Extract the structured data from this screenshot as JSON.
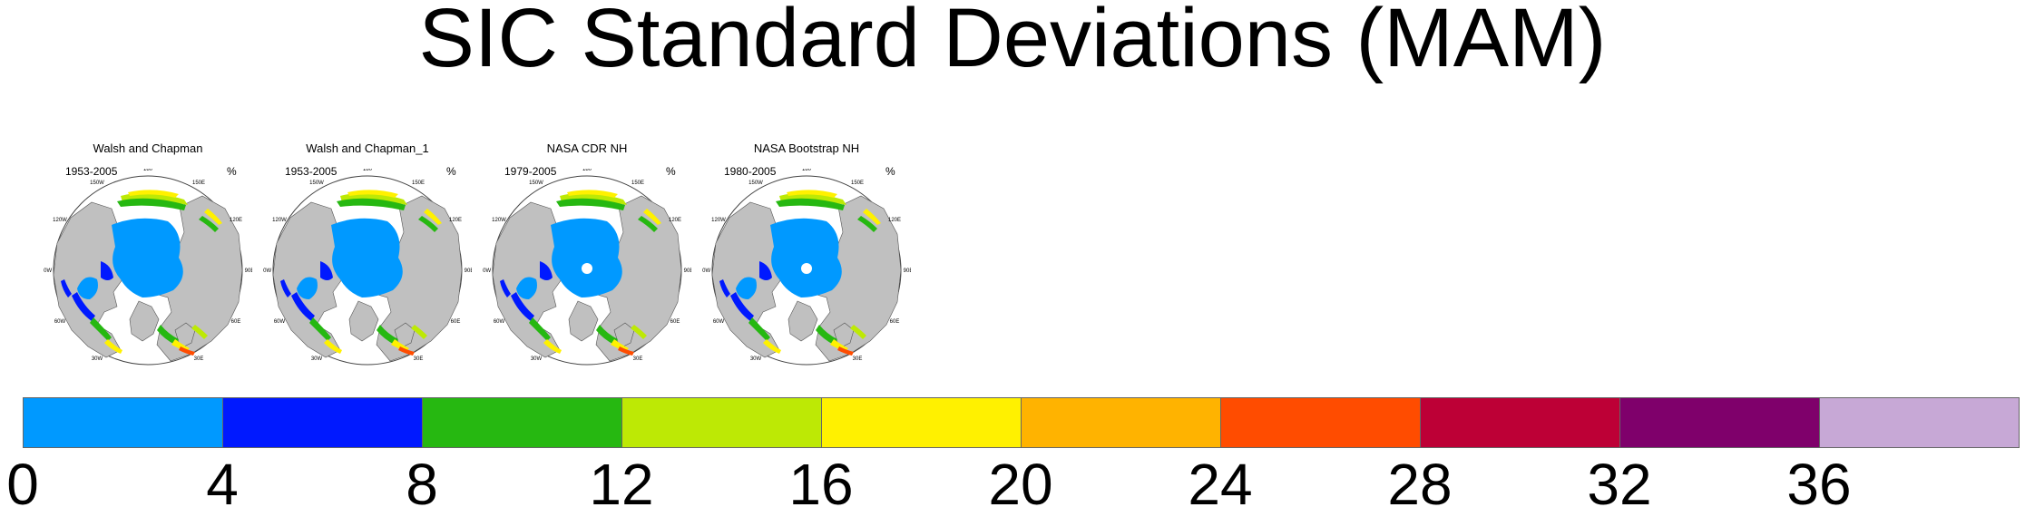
{
  "title": "SIC Standard Deviations (MAM)",
  "panels": [
    {
      "title": "Walsh and Chapman",
      "period": "1953-2005",
      "unit": "%",
      "pole_hole": false
    },
    {
      "title": "Walsh and Chapman_1",
      "period": "1953-2005",
      "unit": "%",
      "pole_hole": false
    },
    {
      "title": "NASA CDR NH",
      "period": "1979-2005",
      "unit": "%",
      "pole_hole": true
    },
    {
      "title": "NASA Bootstrap NH",
      "period": "1980-2005",
      "unit": "%",
      "pole_hole": true
    }
  ],
  "longitude_labels": [
    "180",
    "150E",
    "120E",
    "90E",
    "60E",
    "30E",
    "0",
    "30W",
    "60W",
    "90W",
    "120W",
    "150W"
  ],
  "colorbar": {
    "colors": [
      "#0099ff",
      "#0019ff",
      "#26b811",
      "#bde905",
      "#fff100",
      "#ffb300",
      "#ff4c00",
      "#bd0036",
      "#7f006b",
      "#c7a8d6"
    ],
    "tick_labels": [
      "0",
      "4",
      "8",
      "12",
      "16",
      "20",
      "24",
      "28",
      "32",
      "36"
    ]
  },
  "map_colors": {
    "land": "#c0c0c0",
    "ocean": "#ffffff",
    "coast": "#555555"
  }
}
